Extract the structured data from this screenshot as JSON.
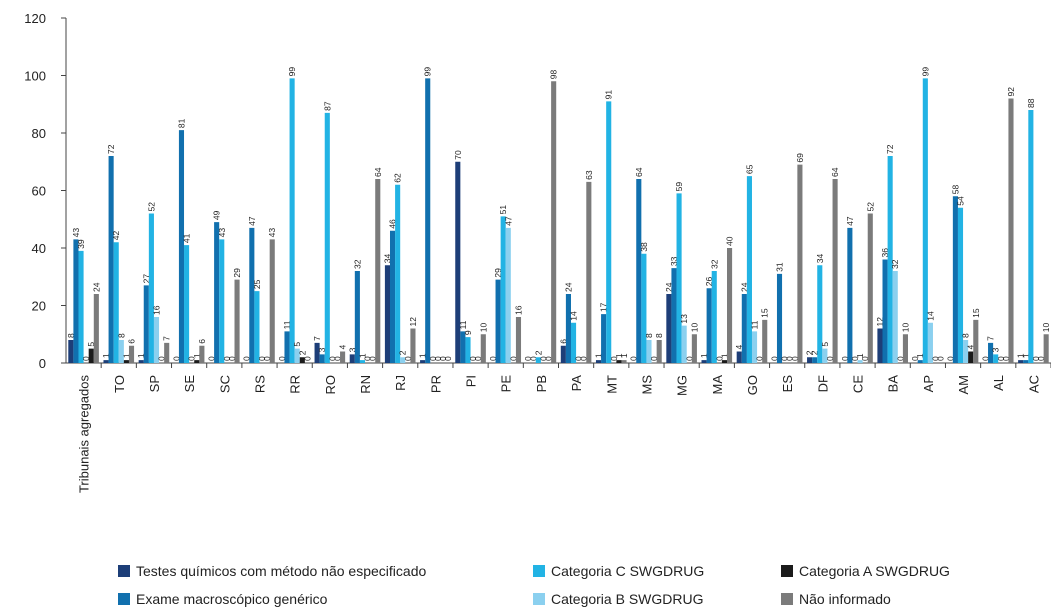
{
  "chart_data": {
    "type": "bar",
    "categories": [
      "Tribunais agregados",
      "TO",
      "SP",
      "SE",
      "SC",
      "RS",
      "RR",
      "RO",
      "RN",
      "RJ",
      "PR",
      "PI",
      "PE",
      "PB",
      "PA",
      "MT",
      "MS",
      "MG",
      "MA",
      "GO",
      "ES",
      "DF",
      "CE",
      "BA",
      "AP",
      "AM",
      "AL",
      "AC"
    ],
    "series": [
      {
        "name": "Testes químicos com método não especificado",
        "color": "#1d3e78",
        "values": [
          8,
          1,
          1,
          0,
          0,
          0,
          0,
          7,
          3,
          34,
          1,
          70,
          0,
          0,
          6,
          1,
          0,
          24,
          1,
          4,
          0,
          2,
          0,
          12,
          0,
          0,
          0,
          1
        ]
      },
      {
        "name": "Exame macroscópico genérico",
        "color": "#1170ae",
        "values": [
          43,
          72,
          27,
          81,
          49,
          47,
          11,
          3,
          32,
          46,
          99,
          11,
          29,
          0,
          24,
          17,
          64,
          33,
          26,
          24,
          31,
          2,
          47,
          36,
          1,
          58,
          7,
          1
        ]
      },
      {
        "name": "Categoria C SWGDRUG",
        "color": "#22b3e4",
        "values": [
          39,
          42,
          52,
          41,
          43,
          25,
          99,
          87,
          1,
          62,
          0,
          9,
          51,
          2,
          14,
          91,
          38,
          59,
          32,
          65,
          0,
          34,
          0,
          72,
          99,
          54,
          3,
          88
        ]
      },
      {
        "name": "Categoria B SWGDRUG",
        "color": "#8bd0ef",
        "values": [
          0,
          8,
          16,
          0,
          0,
          0,
          5,
          0,
          0,
          2,
          0,
          0,
          47,
          0,
          0,
          0,
          8,
          13,
          0,
          11,
          0,
          5,
          1,
          32,
          14,
          8,
          0,
          0
        ]
      },
      {
        "name": "Categoria A SWGDRUG",
        "color": "#1b1b1b",
        "values": [
          5,
          1,
          0,
          1,
          0,
          0,
          2,
          0,
          0,
          0,
          0,
          0,
          0,
          0,
          0,
          1,
          0,
          0,
          1,
          0,
          0,
          0,
          0,
          0,
          0,
          4,
          0,
          0
        ]
      },
      {
        "name": "Não informado",
        "color": "#7b7b7b",
        "values": [
          24,
          6,
          7,
          6,
          29,
          43,
          0,
          4,
          64,
          12,
          0,
          10,
          16,
          98,
          63,
          1,
          8,
          10,
          40,
          15,
          69,
          64,
          52,
          10,
          0,
          15,
          92,
          10
        ]
      }
    ],
    "ylim": [
      0,
      120
    ],
    "yticks": [
      0,
      20,
      40,
      60,
      80,
      100,
      120
    ],
    "grid": false
  }
}
